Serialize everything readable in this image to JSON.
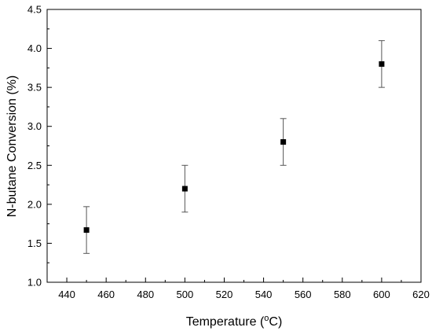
{
  "chart_data": {
    "type": "scatter",
    "title": "",
    "xlabel": {
      "main": "Temperature (",
      "sup": "o",
      "after": "C)"
    },
    "ylabel": "N-butane Conversion (%)",
    "xlim": [
      430,
      620
    ],
    "ylim": [
      1.0,
      4.5
    ],
    "x_ticks": [
      440,
      460,
      480,
      500,
      520,
      540,
      560,
      580,
      600,
      620
    ],
    "y_ticks": [
      1.0,
      1.5,
      2.0,
      2.5,
      3.0,
      3.5,
      4.0,
      4.5
    ],
    "grid": false,
    "legend": "none",
    "series": [
      {
        "marker": "square",
        "color": "#000000",
        "points": [
          {
            "x": 450,
            "y": 1.67,
            "err": 0.3
          },
          {
            "x": 500,
            "y": 2.2,
            "err": 0.3
          },
          {
            "x": 550,
            "y": 2.8,
            "err": 0.3
          },
          {
            "x": 600,
            "y": 3.8,
            "err": 0.3
          }
        ]
      }
    ]
  }
}
